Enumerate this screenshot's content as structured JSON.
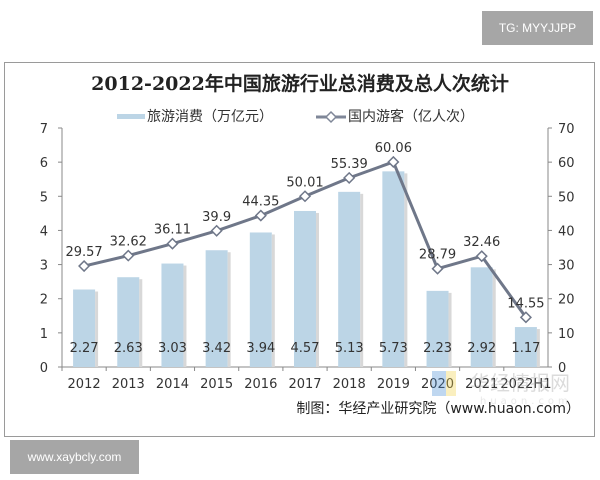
{
  "overlays": {
    "top_tag": "TG: MYYJJPP",
    "bottom_tag": "www.xaybcly.com",
    "watermark": "华经情报网",
    "watermark_sub": "huaon.com"
  },
  "chart_data": {
    "type": "bar+line",
    "title": "2012-2022年中国旅游行业总消费及总人次统计",
    "source": "制图：华经产业研究院（www.huaon.com）",
    "categories": [
      "2012",
      "2013",
      "2014",
      "2015",
      "2016",
      "2017",
      "2018",
      "2019",
      "2020",
      "2021",
      "2022H1"
    ],
    "series": [
      {
        "name": "旅游消费（万亿元）",
        "type": "bar",
        "axis": "left",
        "color": "#bcd5e6",
        "values": [
          2.27,
          2.63,
          3.03,
          3.42,
          3.94,
          4.57,
          5.13,
          5.73,
          2.23,
          2.92,
          1.17
        ]
      },
      {
        "name": "国内游客（亿人次）",
        "type": "line",
        "axis": "right",
        "color": "#7f8798",
        "marker": "diamond",
        "values": [
          29.57,
          32.62,
          36.11,
          39.9,
          44.35,
          50.01,
          55.39,
          60.06,
          28.79,
          32.46,
          14.55
        ]
      }
    ],
    "y_left": {
      "range": [
        0,
        7
      ],
      "ticks": [
        "0",
        "1",
        "2",
        "3",
        "4",
        "5",
        "6",
        "7"
      ]
    },
    "y_right": {
      "range": [
        0,
        70
      ],
      "ticks": [
        "0",
        "10",
        "20",
        "30",
        "40",
        "50",
        "60",
        "70"
      ]
    },
    "grid": false,
    "legend": "top"
  }
}
